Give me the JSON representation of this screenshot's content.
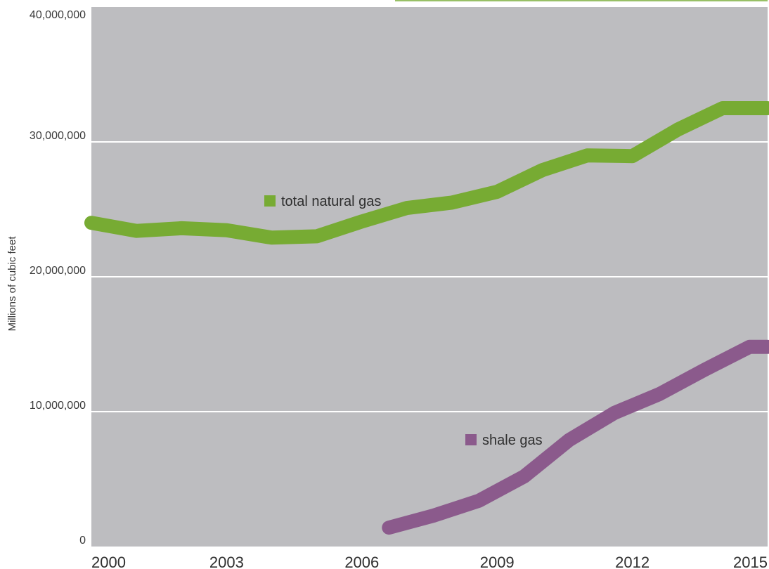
{
  "chart_data": {
    "type": "line",
    "title": "",
    "xlabel": "",
    "ylabel": "Millions of cubic feet",
    "x_ticks": [
      "2000",
      "2003",
      "2006",
      "2009",
      "2012",
      "2015"
    ],
    "y_ticks": [
      "0",
      "10,000,000",
      "20,000,000",
      "30,000,000",
      "40,000,000"
    ],
    "xlim": [
      2000,
      2015
    ],
    "ylim": [
      0,
      40000000
    ],
    "grid": true,
    "series": [
      {
        "name": "total natural gas",
        "color": "#77ab33",
        "x": [
          2000,
          2001,
          2002,
          2003,
          2004,
          2005,
          2006,
          2007,
          2008,
          2009,
          2010,
          2011,
          2012,
          2013,
          2014,
          2015
        ],
        "y": [
          24000000,
          23400000,
          23600000,
          23450000,
          22900000,
          23000000,
          24100000,
          25100000,
          25500000,
          26300000,
          27900000,
          29000000,
          28950000,
          30900000,
          32500000,
          32500000
        ]
      },
      {
        "name": "shale gas",
        "color": "#8b5a8c",
        "x": [
          2006.6,
          2007.6,
          2008.6,
          2009.6,
          2010.6,
          2011.6,
          2012.6,
          2013.6,
          2014.6,
          2015
        ],
        "y": [
          1400000,
          2300000,
          3400000,
          5200000,
          7900000,
          9900000,
          11300000,
          13100000,
          14800000,
          14800000
        ]
      }
    ]
  }
}
